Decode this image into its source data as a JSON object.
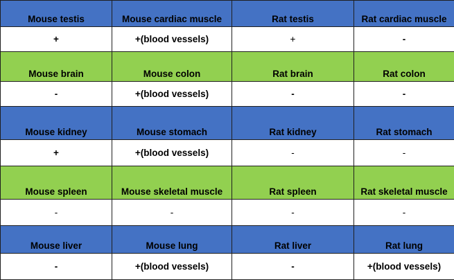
{
  "colors": {
    "blue_header": "#4472c4",
    "green_header": "#92d050",
    "value_row": "#ffffff",
    "border": "#1f1f1f"
  },
  "rows": [
    {
      "style": "blue",
      "headers": [
        "Mouse testis",
        "Mouse cardiac muscle",
        "Rat testis",
        "Rat cardiac muscle"
      ],
      "values": [
        "+",
        "+(blood vessels)",
        "+",
        "-"
      ]
    },
    {
      "style": "green",
      "headers": [
        "Mouse brain",
        "Mouse colon",
        "Rat brain",
        "Rat colon"
      ],
      "values": [
        "-",
        "+(blood vessels)",
        "-",
        "-"
      ]
    },
    {
      "style": "blue",
      "headers": [
        "Mouse kidney",
        "Mouse stomach",
        "Rat kidney",
        "Rat stomach"
      ],
      "values": [
        "+",
        "+(blood vessels)",
        "-",
        "-"
      ]
    },
    {
      "style": "green",
      "headers": [
        "Mouse spleen",
        "Mouse skeletal muscle",
        "Rat spleen",
        "Rat skeletal muscle"
      ],
      "values": [
        "-",
        "-",
        "-",
        "-"
      ]
    },
    {
      "style": "blue",
      "headers": [
        "Mouse liver",
        "Mouse lung",
        "Rat liver",
        "Rat lung"
      ],
      "values": [
        "-",
        "+(blood vessels)",
        "-",
        "+(blood vessels)"
      ]
    }
  ]
}
